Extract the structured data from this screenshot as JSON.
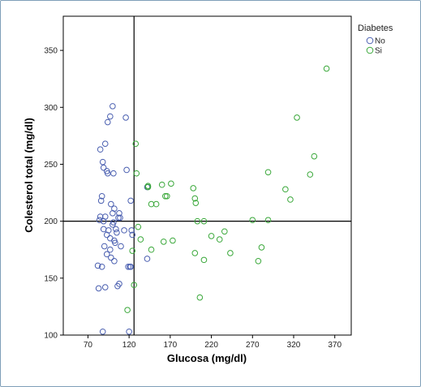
{
  "chart_data": {
    "type": "scatter",
    "title": "",
    "xlabel": "Glucosa (mg/dl)",
    "ylabel": "Colesterol total (mg/dl)",
    "xlim": [
      40,
      390
    ],
    "ylim": [
      100,
      380
    ],
    "x_ticks": [
      70,
      120,
      170,
      220,
      270,
      320,
      370
    ],
    "y_ticks": [
      100,
      150,
      200,
      250,
      300,
      350
    ],
    "x_tick_labels": [
      "70",
      "120",
      "170",
      "220",
      "270",
      "320",
      "370"
    ],
    "y_tick_labels": [
      "100",
      "150",
      "200",
      "250",
      "300",
      "350"
    ],
    "reference_lines": {
      "x": 126,
      "y": 200
    },
    "grid": false,
    "legend": {
      "title": "Diabetes",
      "placement": "top-right, outside plot",
      "entries": [
        "No",
        "Si"
      ]
    },
    "series": [
      {
        "name": "No",
        "color": "#4a5fb0",
        "x": [
          100,
          97,
          116,
          94,
          91,
          85,
          88,
          89,
          93,
          94,
          117,
          101,
          98,
          87,
          86,
          102,
          122,
          85,
          84,
          91,
          100,
          108,
          107,
          109,
          101,
          89,
          100,
          89,
          104,
          95,
          114,
          105,
          93,
          97,
          102,
          103,
          90,
          110,
          97,
          93,
          98,
          102,
          87,
          82,
          122,
          121,
          119,
          83,
          108,
          106,
          91,
          120,
          88,
          142,
          142,
          123,
          124
        ],
        "y": [
          301,
          292,
          291,
          287,
          268,
          263,
          252,
          247,
          244,
          242,
          245,
          242,
          215,
          222,
          218,
          211,
          218,
          204,
          201,
          204,
          207,
          207,
          203,
          203,
          199,
          200,
          197,
          193,
          193,
          192,
          192,
          190,
          188,
          185,
          183,
          181,
          178,
          178,
          175,
          171,
          168,
          165,
          160,
          161,
          160,
          160,
          160,
          141,
          145,
          143,
          142,
          103,
          103,
          230,
          167,
          192,
          188
        ]
      },
      {
        "name": "Si",
        "color": "#3aa83a",
        "x": [
          360,
          324,
          345,
          340,
          289,
          310,
          316,
          128,
          129,
          143,
          160,
          171,
          143,
          153,
          147,
          198,
          200,
          201,
          131,
          164,
          166,
          211,
          270,
          289,
          203,
          147,
          124,
          281,
          220,
          236,
          200,
          243,
          277,
          162,
          173,
          134,
          230,
          211,
          206,
          126,
          118
        ],
        "y": [
          334,
          291,
          257,
          241,
          243,
          228,
          219,
          268,
          242,
          231,
          232,
          233,
          230,
          215,
          215,
          229,
          220,
          216,
          195,
          222,
          222,
          200,
          201,
          201,
          200,
          175,
          174,
          177,
          187,
          191,
          172,
          172,
          165,
          182,
          183,
          184,
          184,
          166,
          133,
          144,
          122
        ]
      }
    ]
  }
}
